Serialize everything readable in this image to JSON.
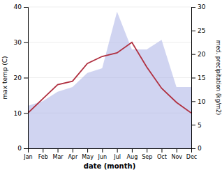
{
  "chart_data": {
    "type": "line",
    "categories": [
      "Jan",
      "Feb",
      "Mar",
      "Apr",
      "May",
      "Jun",
      "Jul",
      "Aug",
      "Sep",
      "Oct",
      "Nov",
      "Dec"
    ],
    "series": [
      {
        "type": "area",
        "axis": "y2",
        "color": "#b0b8e8",
        "values": [
          9,
          10,
          12,
          13,
          16,
          17,
          29,
          21,
          21,
          23,
          13,
          13
        ]
      },
      {
        "type": "line",
        "color": "#b03040",
        "values": [
          10,
          14,
          18,
          19,
          24,
          26,
          27,
          30,
          23,
          17,
          13,
          10
        ]
      }
    ],
    "xlabel": "date (month)",
    "ylabel": "max temp (C)",
    "y2label": "med. precipitation (kg/m2)",
    "ylim": [
      0,
      40
    ],
    "yticks": [
      0,
      10,
      20,
      30,
      40
    ],
    "y2lim": [
      0,
      30
    ],
    "y2ticks": [
      0,
      5,
      10,
      15,
      20,
      25,
      30
    ],
    "grid": true
  }
}
